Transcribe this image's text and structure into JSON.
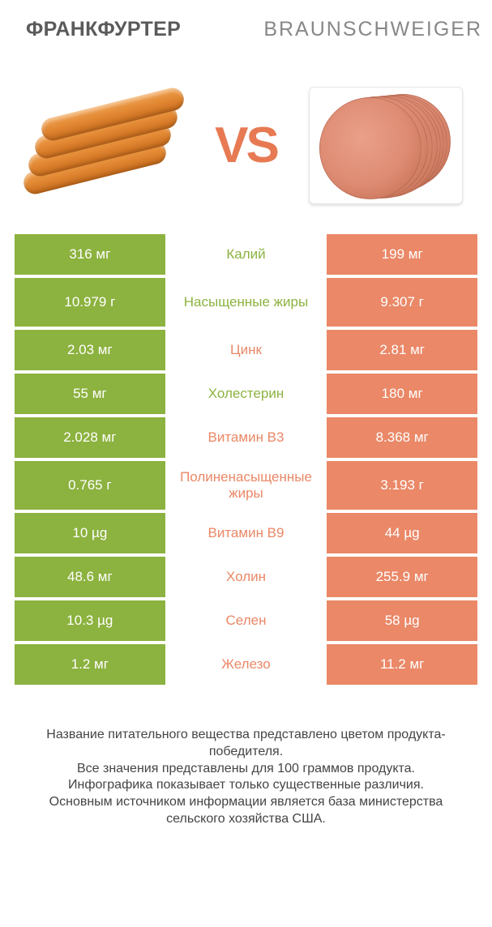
{
  "colors": {
    "green": "#8cb23f",
    "orange": "#ea8867",
    "title_left": "#5a5a5a",
    "title_right": "#888888",
    "vs": "#e77a53",
    "footer": "#444444",
    "background": "#ffffff"
  },
  "header": {
    "left": "ФРАНКФУРТЕР",
    "right": "BRAUNSCHWEIGER"
  },
  "vs_label": "VS",
  "rows": [
    {
      "left": "316 мг",
      "mid": "Калий",
      "right": "199 мг",
      "winner": "left",
      "tall": false
    },
    {
      "left": "10.979 г",
      "mid": "Насыщенные жиры",
      "right": "9.307 г",
      "winner": "left",
      "tall": true
    },
    {
      "left": "2.03 мг",
      "mid": "Цинк",
      "right": "2.81 мг",
      "winner": "right",
      "tall": false
    },
    {
      "left": "55 мг",
      "mid": "Холестерин",
      "right": "180 мг",
      "winner": "left",
      "tall": false
    },
    {
      "left": "2.028 мг",
      "mid": "Витамин B3",
      "right": "8.368 мг",
      "winner": "right",
      "tall": false
    },
    {
      "left": "0.765 г",
      "mid": "Полиненасыщенные жиры",
      "right": "3.193 г",
      "winner": "right",
      "tall": true
    },
    {
      "left": "10 µg",
      "mid": "Витамин B9",
      "right": "44 µg",
      "winner": "right",
      "tall": false
    },
    {
      "left": "48.6 мг",
      "mid": "Холин",
      "right": "255.9 мг",
      "winner": "right",
      "tall": false
    },
    {
      "left": "10.3 µg",
      "mid": "Селен",
      "right": "58 µg",
      "winner": "right",
      "tall": false
    },
    {
      "left": "1.2 мг",
      "mid": "Железо",
      "right": "11.2 мг",
      "winner": "right",
      "tall": false
    }
  ],
  "footer": {
    "line1": "Название питательного вещества представлено цветом продукта-победителя.",
    "line2": "Все значения представлены для 100 граммов продукта.",
    "line3": "Инфографика показывает только существенные различия.",
    "line4": "Основным источником информации является база министерства сельского хозяйства США."
  }
}
